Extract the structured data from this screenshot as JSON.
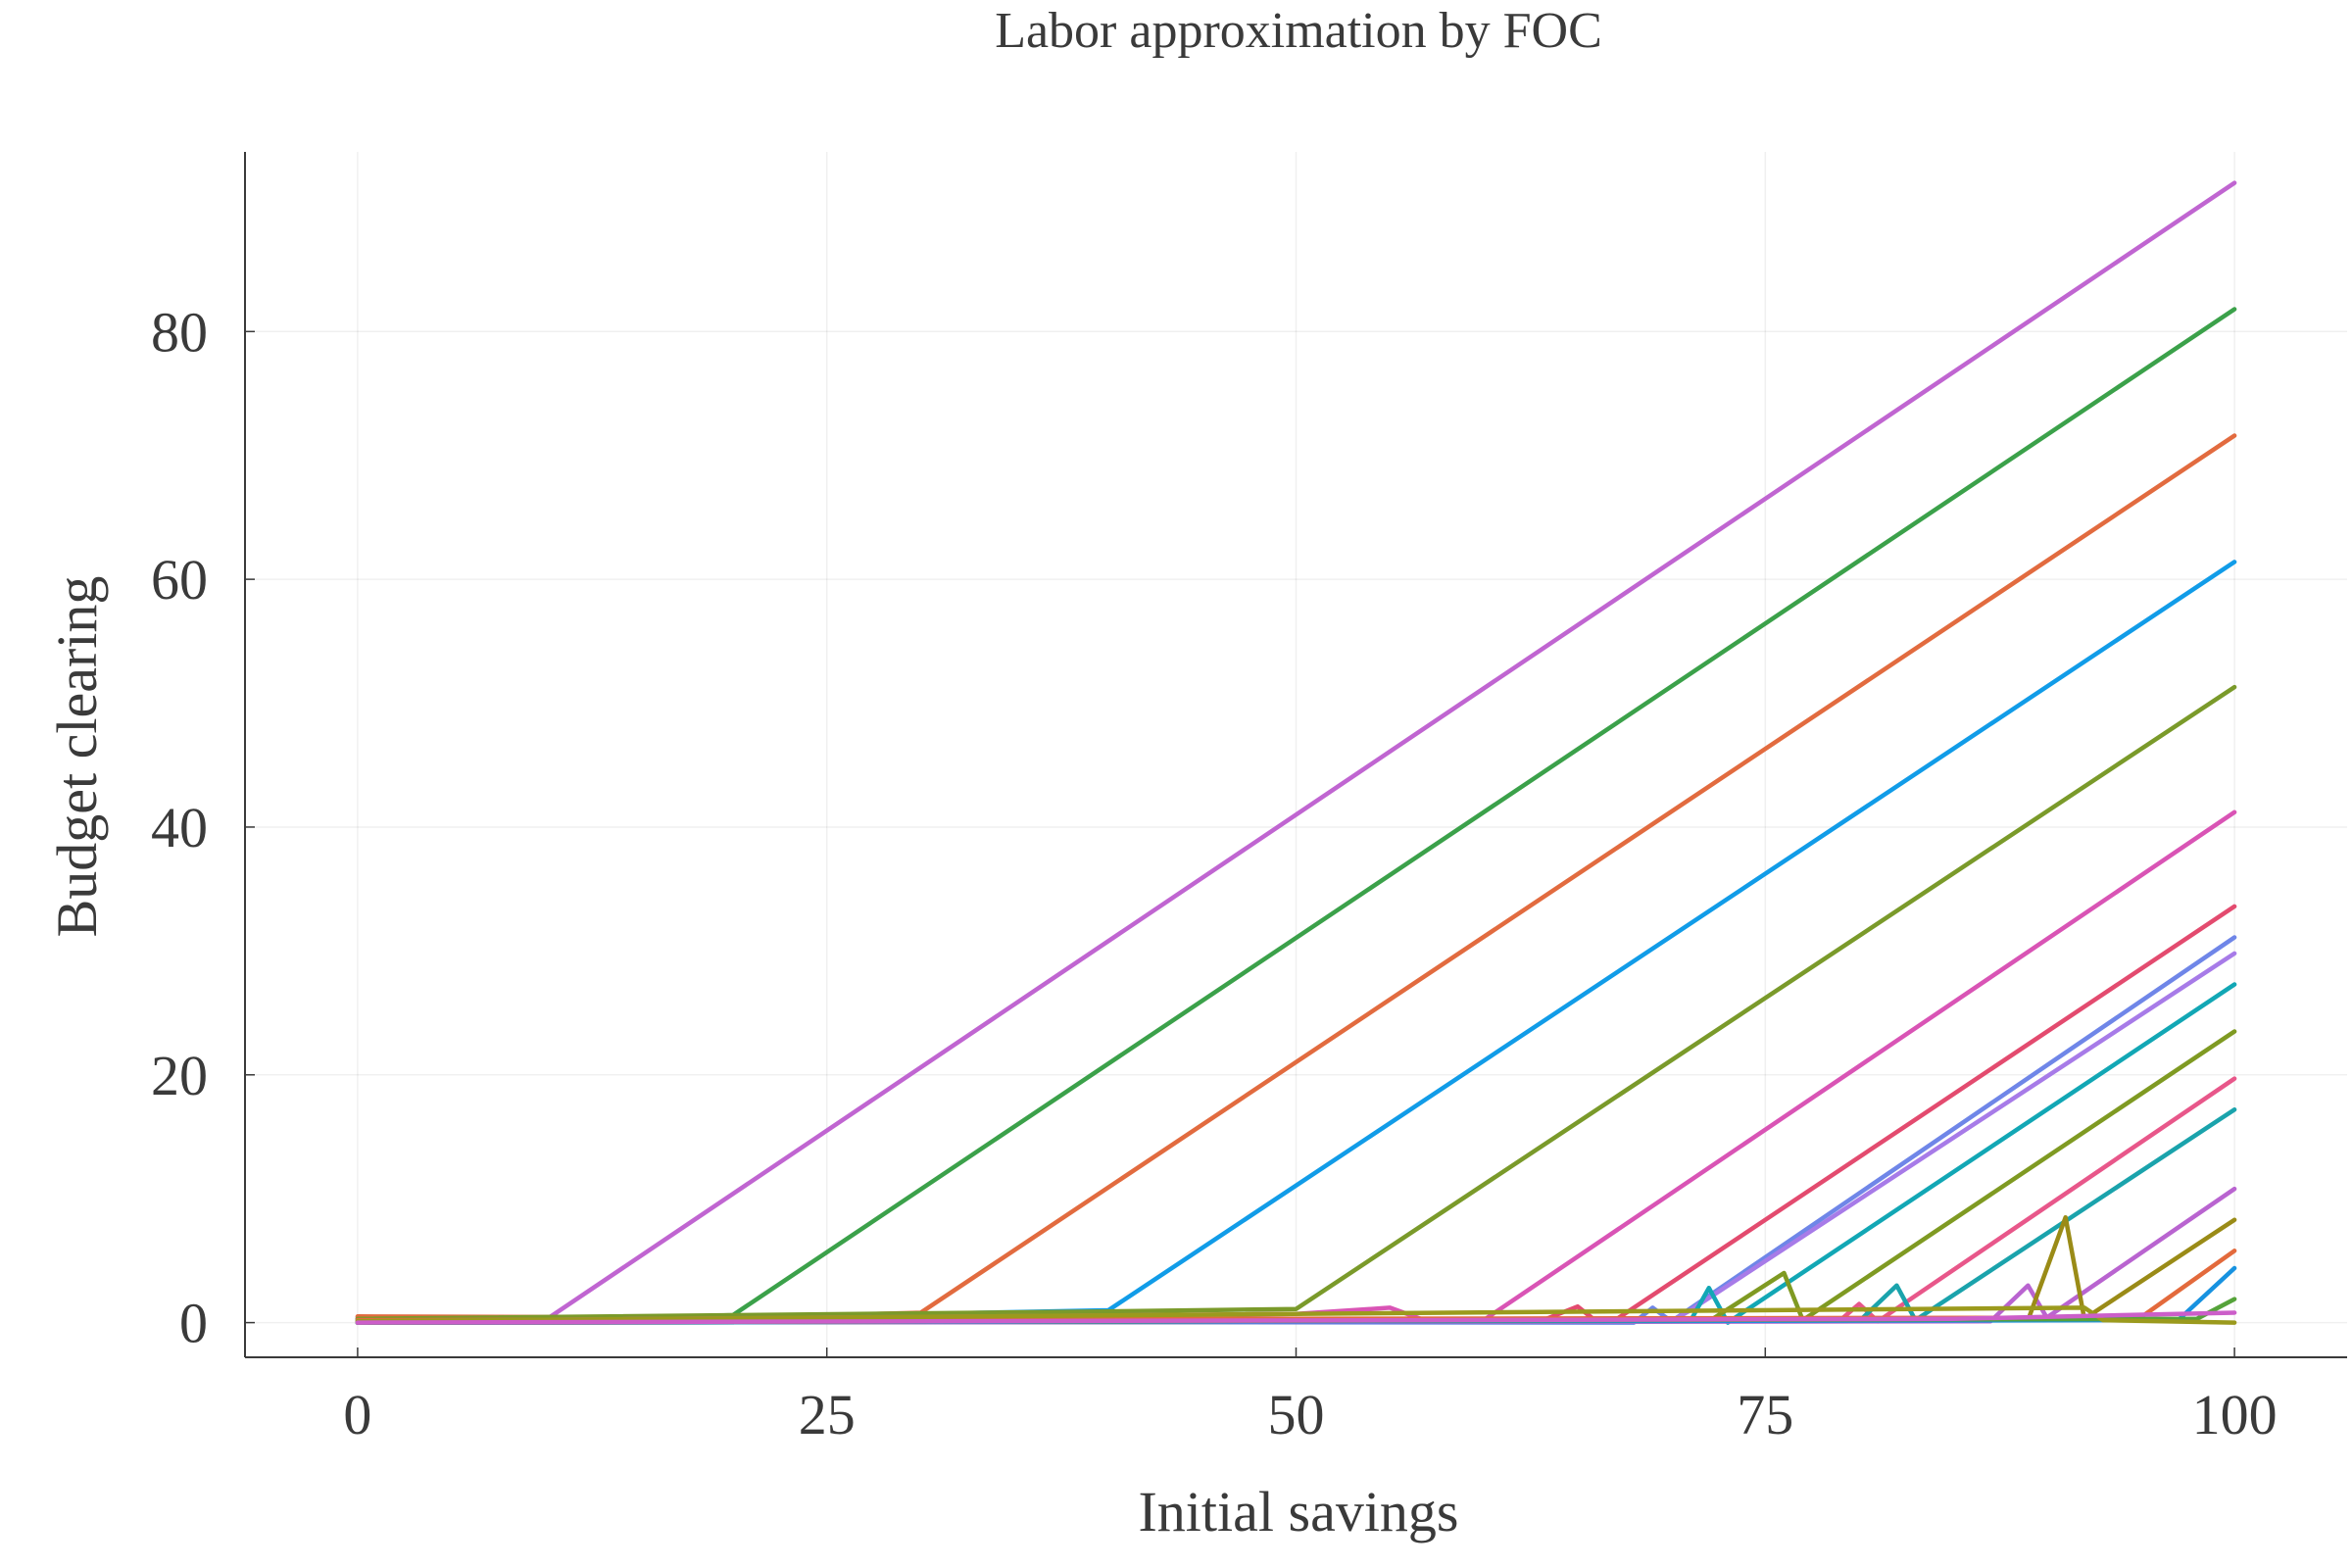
{
  "chart_data": {
    "type": "line",
    "title": "Labor approximation by FOC",
    "xlabel": "Initial savings",
    "ylabel": "Budget clearing",
    "xlim": [
      -6,
      106
    ],
    "ylim": [
      -2.8,
      94.5
    ],
    "xticks": [
      0,
      25,
      50,
      75,
      100
    ],
    "xtick_labels": [
      "0",
      "25",
      "50",
      "75",
      "100"
    ],
    "yticks": [
      0,
      20,
      40,
      60,
      80
    ],
    "ytick_labels": [
      "0",
      "20",
      "40",
      "60",
      "80"
    ],
    "grid": true,
    "legend": "none",
    "series": [
      {
        "color": "#c065d1",
        "values": [
          [
            0,
            0.4
          ],
          [
            5,
            0.1
          ],
          [
            10,
            0.2
          ],
          [
            100,
            92.0
          ]
        ]
      },
      {
        "color": "#3ba14a",
        "values": [
          [
            0,
            0.3
          ],
          [
            10,
            0.2
          ],
          [
            20,
            0.6
          ],
          [
            100,
            81.8
          ]
        ]
      },
      {
        "color": "#e26b3f",
        "values": [
          [
            0,
            0.5
          ],
          [
            20,
            0.4
          ],
          [
            30,
            0.8
          ],
          [
            100,
            71.6
          ]
        ]
      },
      {
        "color": "#119ce8",
        "values": [
          [
            0,
            0.2
          ],
          [
            30,
            0.7
          ],
          [
            40,
            1.0
          ],
          [
            100,
            61.4
          ]
        ]
      },
      {
        "color": "#7a9a2a",
        "values": [
          [
            0,
            0.3
          ],
          [
            40,
            0.9
          ],
          [
            50,
            1.1
          ],
          [
            100,
            51.3
          ]
        ]
      },
      {
        "color": "#d954b5",
        "values": [
          [
            0,
            0.1
          ],
          [
            50,
            0.7
          ],
          [
            55,
            1.2
          ],
          [
            57,
            0.1
          ],
          [
            60,
            0.2
          ],
          [
            100,
            41.2
          ]
        ]
      },
      {
        "color": "#e34b6f",
        "values": [
          [
            0,
            0.0
          ],
          [
            63,
            0.1
          ],
          [
            65,
            1.3
          ],
          [
            66,
            0.1
          ],
          [
            67,
            0.2
          ],
          [
            100,
            33.6
          ]
        ]
      },
      {
        "color": "#6f86e8",
        "values": [
          [
            0,
            0.1
          ],
          [
            68,
            0.0
          ],
          [
            69,
            1.2
          ],
          [
            70,
            0.1
          ],
          [
            100,
            31.1
          ]
        ]
      },
      {
        "color": "#a77be8",
        "values": [
          [
            0,
            0.0
          ],
          [
            70,
            0.1
          ],
          [
            71,
            1.0
          ],
          [
            100,
            29.8
          ]
        ]
      },
      {
        "color": "#12a7b5",
        "values": [
          [
            0,
            0.0
          ],
          [
            71,
            0.1
          ],
          [
            72,
            2.8
          ],
          [
            73,
            0.0
          ],
          [
            100,
            27.3
          ]
        ]
      },
      {
        "color": "#7f9a22",
        "values": [
          [
            0,
            0.0
          ],
          [
            72,
            0.1
          ],
          [
            76,
            4.0
          ],
          [
            77,
            0.2
          ],
          [
            100,
            23.5
          ]
        ]
      },
      {
        "color": "#e8578a",
        "values": [
          [
            0,
            0.0
          ],
          [
            79,
            0.2
          ],
          [
            80,
            1.5
          ],
          [
            81,
            0.1
          ],
          [
            100,
            19.7
          ]
        ]
      },
      {
        "color": "#1aa3ac",
        "values": [
          [
            0,
            0.0
          ],
          [
            80,
            0.1
          ],
          [
            82,
            3.0
          ],
          [
            83,
            0.2
          ],
          [
            100,
            17.2
          ]
        ]
      },
      {
        "color": "#b964d0",
        "values": [
          [
            0,
            0.0
          ],
          [
            87,
            0.1
          ],
          [
            89,
            3.0
          ],
          [
            90,
            0.4
          ],
          [
            100,
            10.8
          ]
        ]
      },
      {
        "color": "#9a8b17",
        "values": [
          [
            0,
            0.0
          ],
          [
            89,
            0.2
          ],
          [
            91,
            8.5
          ],
          [
            92,
            0.3
          ],
          [
            100,
            8.3
          ]
        ]
      },
      {
        "color": "#e36a3c",
        "values": [
          [
            0,
            0.2
          ],
          [
            95,
            0.4
          ],
          [
            100,
            5.8
          ]
        ]
      },
      {
        "color": "#1792e0",
        "values": [
          [
            0,
            0.0
          ],
          [
            97,
            0.2
          ],
          [
            100,
            4.4
          ]
        ]
      },
      {
        "color": "#55a33a",
        "values": [
          [
            0,
            0.0
          ],
          [
            98,
            0.3
          ],
          [
            100,
            1.9
          ]
        ]
      },
      {
        "color": "#9b9a1d",
        "values": [
          [
            0,
            0.1
          ],
          [
            92,
            1.2
          ],
          [
            93,
            0.2
          ],
          [
            100,
            0.0
          ]
        ]
      },
      {
        "color": "#cc5ec9",
        "values": [
          [
            0,
            0.0
          ],
          [
            85,
            0.3
          ],
          [
            100,
            0.8
          ]
        ]
      }
    ]
  }
}
